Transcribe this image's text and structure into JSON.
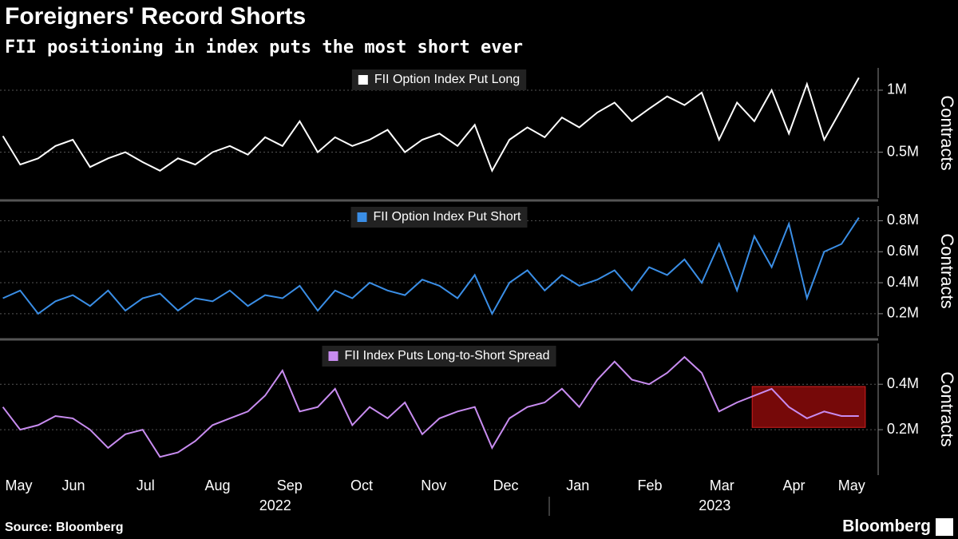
{
  "title": "Foreigners' Record Shorts",
  "subtitle": "FII positioning in index puts the most short ever",
  "source": "Source: Bloomberg",
  "brand": "Bloomberg",
  "chart_data": [
    {
      "type": "line",
      "x": [
        0.52,
        0.76,
        1.01,
        1.25,
        1.49,
        1.73,
        1.98,
        2.22,
        2.46,
        2.7,
        2.95,
        3.19,
        3.43,
        3.67,
        3.92,
        4.16,
        4.4,
        4.64,
        4.89,
        5.13,
        5.37,
        5.61,
        5.86,
        6.1,
        6.34,
        6.58,
        6.83,
        7.07,
        7.31,
        7.55,
        7.8,
        8.04,
        8.28,
        8.52,
        8.77,
        9.01,
        9.25,
        9.49,
        9.74,
        9.98,
        10.22,
        10.46,
        10.71,
        10.95,
        11.19,
        11.43,
        11.68,
        11.92,
        12.16,
        12.4
      ],
      "series": [
        {
          "name": "FII Option Index Put Long",
          "color": "#ffffff",
          "values": [
            630000,
            400000,
            450000,
            550000,
            600000,
            380000,
            450000,
            500000,
            420000,
            350000,
            450000,
            400000,
            500000,
            550000,
            480000,
            620000,
            550000,
            750000,
            500000,
            620000,
            550000,
            600000,
            680000,
            500000,
            600000,
            650000,
            550000,
            720000,
            350000,
            600000,
            700000,
            620000,
            780000,
            700000,
            820000,
            900000,
            750000,
            850000,
            950000,
            880000,
            980000,
            600000,
            900000,
            750000,
            1000000,
            650000,
            1050000,
            600000,
            850000,
            1100000
          ]
        }
      ],
      "xlim": [
        0.48,
        12.58
      ],
      "ylim": [
        130000,
        1180000
      ],
      "yticks": [
        {
          "value": 500000,
          "label": "0.5M"
        },
        {
          "value": 1000000,
          "label": "1M"
        }
      ],
      "y_label": "Contracts",
      "grid": true
    },
    {
      "type": "line",
      "x": [
        0.52,
        0.76,
        1.01,
        1.25,
        1.49,
        1.73,
        1.98,
        2.22,
        2.46,
        2.7,
        2.95,
        3.19,
        3.43,
        3.67,
        3.92,
        4.16,
        4.4,
        4.64,
        4.89,
        5.13,
        5.37,
        5.61,
        5.86,
        6.1,
        6.34,
        6.58,
        6.83,
        7.07,
        7.31,
        7.55,
        7.8,
        8.04,
        8.28,
        8.52,
        8.77,
        9.01,
        9.25,
        9.49,
        9.74,
        9.98,
        10.22,
        10.46,
        10.71,
        10.95,
        11.19,
        11.43,
        11.68,
        11.92,
        12.16,
        12.4
      ],
      "series": [
        {
          "name": "FII Option Index Put Short",
          "color": "#3a8ee6",
          "values": [
            300000,
            350000,
            200000,
            280000,
            320000,
            250000,
            350000,
            220000,
            300000,
            330000,
            220000,
            300000,
            280000,
            350000,
            250000,
            320000,
            300000,
            380000,
            220000,
            350000,
            300000,
            400000,
            350000,
            320000,
            420000,
            380000,
            300000,
            450000,
            200000,
            400000,
            480000,
            350000,
            450000,
            380000,
            420000,
            480000,
            350000,
            500000,
            450000,
            550000,
            400000,
            650000,
            350000,
            700000,
            500000,
            780000,
            300000,
            600000,
            650000,
            820000
          ]
        }
      ],
      "xlim": [
        0.48,
        12.58
      ],
      "ylim": [
        55000,
        895000
      ],
      "yticks": [
        {
          "value": 200000,
          "label": "0.2M"
        },
        {
          "value": 400000,
          "label": "0.4M"
        },
        {
          "value": 600000,
          "label": "0.6M"
        },
        {
          "value": 800000,
          "label": "0.8M"
        }
      ],
      "y_label": "Contracts",
      "grid": true
    },
    {
      "type": "line",
      "x": [
        0.52,
        0.76,
        1.01,
        1.25,
        1.49,
        1.73,
        1.98,
        2.22,
        2.46,
        2.7,
        2.95,
        3.19,
        3.43,
        3.67,
        3.92,
        4.16,
        4.4,
        4.64,
        4.89,
        5.13,
        5.37,
        5.61,
        5.86,
        6.1,
        6.34,
        6.58,
        6.83,
        7.07,
        7.31,
        7.55,
        7.8,
        8.04,
        8.28,
        8.52,
        8.77,
        9.01,
        9.25,
        9.49,
        9.74,
        9.98,
        10.22,
        10.46,
        10.71,
        10.95,
        11.19,
        11.43,
        11.68,
        11.92,
        12.16,
        12.4
      ],
      "series": [
        {
          "name": "FII Index Puts Long-to-Short Spread",
          "color": "#c88cf0",
          "values": [
            300000,
            200000,
            220000,
            260000,
            250000,
            200000,
            120000,
            180000,
            200000,
            80000,
            100000,
            150000,
            220000,
            250000,
            280000,
            350000,
            460000,
            280000,
            300000,
            380000,
            220000,
            300000,
            250000,
            320000,
            180000,
            250000,
            280000,
            300000,
            120000,
            250000,
            300000,
            320000,
            380000,
            300000,
            420000,
            500000,
            420000,
            400000,
            450000,
            520000,
            450000,
            280000,
            320000,
            350000,
            380000,
            300000,
            250000,
            280000,
            260000,
            260000
          ]
        }
      ],
      "xlim": [
        0.48,
        12.58
      ],
      "ylim": [
        0,
        580000
      ],
      "yticks": [
        {
          "value": 200000,
          "label": "0.2M"
        },
        {
          "value": 400000,
          "label": "0.4M"
        }
      ],
      "y_label": "Contracts",
      "grid": true,
      "highlight": {
        "x": [
          10.92,
          12.49
        ],
        "y": [
          210000,
          390000
        ],
        "color": "#8b0a0a"
      },
      "xticks": [
        {
          "value": 0.74,
          "label": "May"
        },
        {
          "value": 1.5,
          "label": "Jun"
        },
        {
          "value": 2.5,
          "label": "Jul"
        },
        {
          "value": 3.5,
          "label": "Aug"
        },
        {
          "value": 4.5,
          "label": "Sep"
        },
        {
          "value": 5.5,
          "label": "Oct"
        },
        {
          "value": 6.5,
          "label": "Nov"
        },
        {
          "value": 7.5,
          "label": "Dec"
        },
        {
          "value": 8.5,
          "label": "Jan"
        },
        {
          "value": 9.5,
          "label": "Feb"
        },
        {
          "value": 10.5,
          "label": "Mar"
        },
        {
          "value": 11.5,
          "label": "Apr"
        },
        {
          "value": 12.3,
          "label": "May"
        }
      ],
      "year_labels": [
        {
          "value": 4.3,
          "label": "2022"
        },
        {
          "value": 10.4,
          "label": "2023"
        }
      ]
    }
  ]
}
